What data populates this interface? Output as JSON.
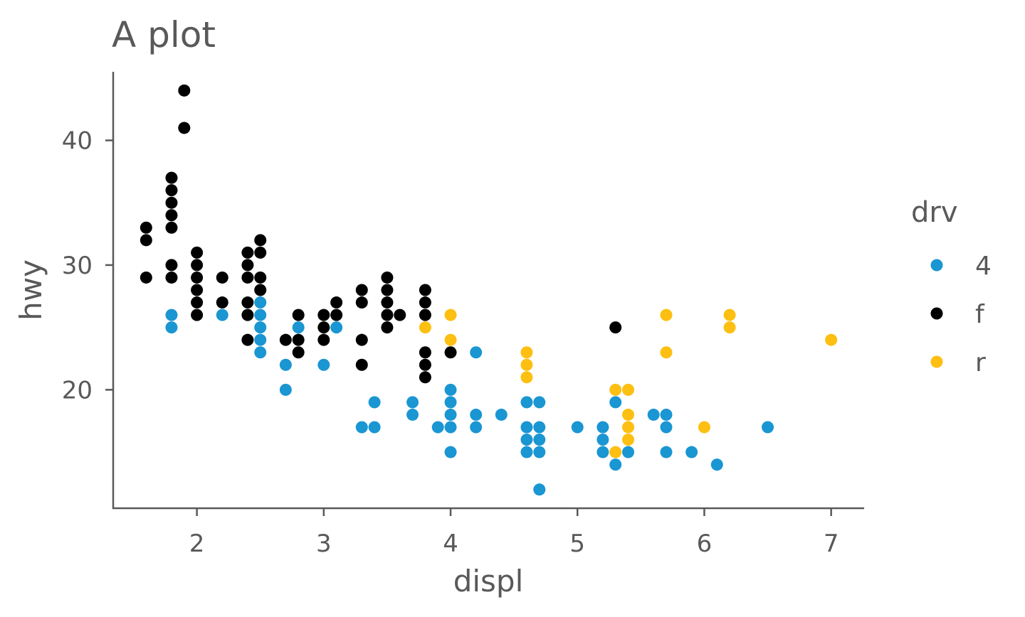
{
  "chart_data": {
    "type": "scatter",
    "title": "A plot",
    "xlabel": "displ",
    "ylabel": "hwy",
    "xlim": [
      1.34,
      7.26
    ],
    "ylim": [
      10.5,
      45.5
    ],
    "x_ticks": [
      2,
      3,
      4,
      5,
      6,
      7
    ],
    "y_ticks": [
      20,
      30,
      40
    ],
    "grid": false,
    "legend": {
      "title": "drv",
      "position": "right"
    },
    "series": [
      {
        "name": "4",
        "color": "#1A96D2",
        "points": [
          [
            1.8,
            26
          ],
          [
            1.8,
            25
          ],
          [
            2.2,
            26
          ],
          [
            2.5,
            27
          ],
          [
            2.5,
            26
          ],
          [
            2.5,
            25
          ],
          [
            2.5,
            24
          ],
          [
            2.5,
            23
          ],
          [
            2.7,
            22
          ],
          [
            2.7,
            20
          ],
          [
            2.8,
            25
          ],
          [
            3.0,
            22
          ],
          [
            3.1,
            25
          ],
          [
            3.3,
            17
          ],
          [
            3.4,
            19
          ],
          [
            3.4,
            17
          ],
          [
            3.7,
            19
          ],
          [
            3.7,
            18
          ],
          [
            3.9,
            17
          ],
          [
            4.0,
            20
          ],
          [
            4.0,
            19
          ],
          [
            4.0,
            18
          ],
          [
            4.0,
            17
          ],
          [
            4.0,
            15
          ],
          [
            4.2,
            23
          ],
          [
            4.2,
            18
          ],
          [
            4.2,
            17
          ],
          [
            4.4,
            18
          ],
          [
            4.6,
            19
          ],
          [
            4.6,
            17
          ],
          [
            4.6,
            16
          ],
          [
            4.6,
            15
          ],
          [
            4.7,
            19
          ],
          [
            4.7,
            17
          ],
          [
            4.7,
            16
          ],
          [
            4.7,
            15
          ],
          [
            4.7,
            12
          ],
          [
            5.0,
            17
          ],
          [
            5.2,
            17
          ],
          [
            5.2,
            16
          ],
          [
            5.2,
            15
          ],
          [
            5.3,
            19
          ],
          [
            5.3,
            14
          ],
          [
            5.4,
            15
          ],
          [
            5.6,
            18
          ],
          [
            5.7,
            18
          ],
          [
            5.7,
            17
          ],
          [
            5.7,
            15
          ],
          [
            5.9,
            15
          ],
          [
            6.1,
            14
          ],
          [
            6.5,
            17
          ]
        ]
      },
      {
        "name": "f",
        "color": "#000000",
        "points": [
          [
            1.6,
            33
          ],
          [
            1.6,
            32
          ],
          [
            1.6,
            29
          ],
          [
            1.8,
            37
          ],
          [
            1.8,
            36
          ],
          [
            1.8,
            35
          ],
          [
            1.8,
            34
          ],
          [
            1.8,
            33
          ],
          [
            1.8,
            30
          ],
          [
            1.8,
            29
          ],
          [
            1.9,
            44
          ],
          [
            1.9,
            41
          ],
          [
            2.0,
            31
          ],
          [
            2.0,
            30
          ],
          [
            2.0,
            29
          ],
          [
            2.0,
            28
          ],
          [
            2.0,
            27
          ],
          [
            2.0,
            26
          ],
          [
            2.2,
            29
          ],
          [
            2.2,
            27
          ],
          [
            2.4,
            31
          ],
          [
            2.4,
            30
          ],
          [
            2.4,
            29
          ],
          [
            2.4,
            27
          ],
          [
            2.4,
            26
          ],
          [
            2.4,
            24
          ],
          [
            2.5,
            32
          ],
          [
            2.5,
            31
          ],
          [
            2.5,
            29
          ],
          [
            2.5,
            28
          ],
          [
            2.7,
            24
          ],
          [
            2.8,
            26
          ],
          [
            2.8,
            24
          ],
          [
            2.8,
            23
          ],
          [
            3.0,
            26
          ],
          [
            3.0,
            25
          ],
          [
            3.0,
            24
          ],
          [
            3.1,
            27
          ],
          [
            3.1,
            26
          ],
          [
            3.3,
            28
          ],
          [
            3.3,
            27
          ],
          [
            3.3,
            24
          ],
          [
            3.3,
            22
          ],
          [
            3.5,
            29
          ],
          [
            3.5,
            28
          ],
          [
            3.5,
            27
          ],
          [
            3.5,
            26
          ],
          [
            3.5,
            25
          ],
          [
            3.6,
            26
          ],
          [
            3.8,
            28
          ],
          [
            3.8,
            27
          ],
          [
            3.8,
            26
          ],
          [
            3.8,
            23
          ],
          [
            3.8,
            22
          ],
          [
            3.8,
            21
          ],
          [
            4.0,
            23
          ],
          [
            5.3,
            25
          ]
        ]
      },
      {
        "name": "r",
        "color": "#FDBF11",
        "points": [
          [
            3.8,
            25
          ],
          [
            4.0,
            26
          ],
          [
            4.0,
            24
          ],
          [
            4.6,
            23
          ],
          [
            4.6,
            22
          ],
          [
            4.6,
            21
          ],
          [
            5.3,
            20
          ],
          [
            5.3,
            15
          ],
          [
            5.4,
            20
          ],
          [
            5.4,
            18
          ],
          [
            5.4,
            17
          ],
          [
            5.4,
            16
          ],
          [
            5.7,
            26
          ],
          [
            5.7,
            23
          ],
          [
            6.0,
            17
          ],
          [
            6.2,
            26
          ],
          [
            6.2,
            25
          ],
          [
            7.0,
            24
          ]
        ]
      }
    ]
  }
}
